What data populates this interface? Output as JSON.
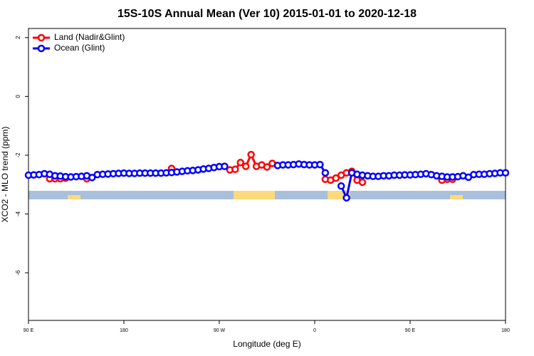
{
  "chart_data": {
    "type": "line",
    "title": "15S-10S Annual Mean (Ver 10)   2015-01-01 to 2020-12-18",
    "xlabel": "Longitude (deg E)",
    "ylabel": "XCO2 - MLO trend (ppm)",
    "x": [
      90,
      95,
      100,
      105,
      110,
      115,
      120,
      125,
      130,
      135,
      140,
      145,
      150,
      155,
      160,
      165,
      170,
      175,
      180,
      185,
      190,
      195,
      200,
      205,
      210,
      215,
      220,
      225,
      230,
      235,
      240,
      245,
      250,
      255,
      260,
      265,
      270,
      275,
      280,
      285,
      290,
      295,
      300,
      305,
      310,
      315,
      320,
      325,
      330,
      335,
      340,
      345,
      350,
      355,
      360,
      365,
      370,
      375,
      380,
      385,
      390,
      395,
      400,
      405,
      410,
      415,
      420,
      425,
      430,
      435,
      440,
      445,
      450,
      455,
      460,
      465,
      470,
      475,
      480,
      485,
      490,
      495,
      500,
      505,
      510,
      515,
      520,
      525,
      530,
      535,
      540
    ],
    "series": [
      {
        "name": "Land (Nadir&Glint)",
        "color": "#ff0000",
        "values": [
          null,
          null,
          null,
          null,
          -2.8,
          -2.8,
          -2.8,
          -2.78,
          null,
          null,
          null,
          -2.8,
          null,
          null,
          null,
          null,
          null,
          null,
          null,
          null,
          null,
          null,
          null,
          null,
          null,
          null,
          null,
          -2.45,
          null,
          null,
          null,
          null,
          null,
          null,
          null,
          null,
          null,
          null,
          -2.5,
          -2.48,
          -2.25,
          -2.38,
          -1.98,
          -2.38,
          -2.33,
          -2.4,
          -2.28,
          null,
          null,
          null,
          null,
          null,
          null,
          null,
          null,
          null,
          -2.82,
          -2.85,
          -2.78,
          -2.68,
          -2.6,
          -2.55,
          -2.85,
          -2.92,
          null,
          null,
          null,
          null,
          null,
          null,
          null,
          null,
          null,
          null,
          null,
          null,
          null,
          null,
          -2.85,
          -2.82,
          -2.82,
          null,
          null,
          null,
          null,
          null,
          null,
          null,
          null,
          null,
          null
        ]
      },
      {
        "name": "Ocean (Glint)",
        "color": "#0000ff",
        "values": [
          -2.68,
          -2.67,
          -2.66,
          -2.63,
          -2.65,
          -2.7,
          -2.71,
          -2.73,
          -2.74,
          -2.73,
          -2.72,
          -2.7,
          -2.76,
          -2.66,
          -2.65,
          -2.64,
          -2.63,
          -2.62,
          -2.61,
          -2.62,
          -2.62,
          -2.61,
          -2.61,
          -2.61,
          -2.61,
          -2.61,
          -2.6,
          -2.59,
          -2.57,
          -2.55,
          -2.53,
          -2.52,
          -2.5,
          -2.47,
          -2.45,
          -2.42,
          -2.39,
          -2.38,
          null,
          null,
          null,
          null,
          null,
          null,
          null,
          null,
          null,
          -2.35,
          -2.33,
          -2.33,
          -2.32,
          -2.3,
          -2.32,
          -2.33,
          -2.33,
          -2.32,
          -2.6,
          null,
          null,
          -3.05,
          -3.45,
          -2.6,
          -2.65,
          -2.68,
          -2.7,
          -2.72,
          -2.72,
          -2.7,
          -2.7,
          -2.68,
          -2.68,
          -2.67,
          -2.67,
          -2.66,
          -2.65,
          -2.63,
          -2.66,
          -2.7,
          -2.72,
          -2.74,
          -2.74,
          -2.73,
          -2.7,
          -2.75,
          -2.66,
          -2.65,
          -2.65,
          -2.63,
          -2.62,
          -2.6,
          -2.6
        ]
      }
    ],
    "xlim": [
      90,
      540
    ],
    "xticks": [
      {
        "value": 90,
        "label": "90 E"
      },
      180,
      {
        "value": 270,
        "label": "90 W"
      },
      {
        "value": 360,
        "label": "0"
      },
      {
        "value": 450,
        "label": "90 E"
      },
      {
        "value": 540,
        "label": "180"
      }
    ],
    "ylim": [
      -7.62,
      2.31
    ],
    "yticks": [
      2,
      0,
      -2,
      -4,
      -6
    ],
    "legend": "upper left"
  }
}
